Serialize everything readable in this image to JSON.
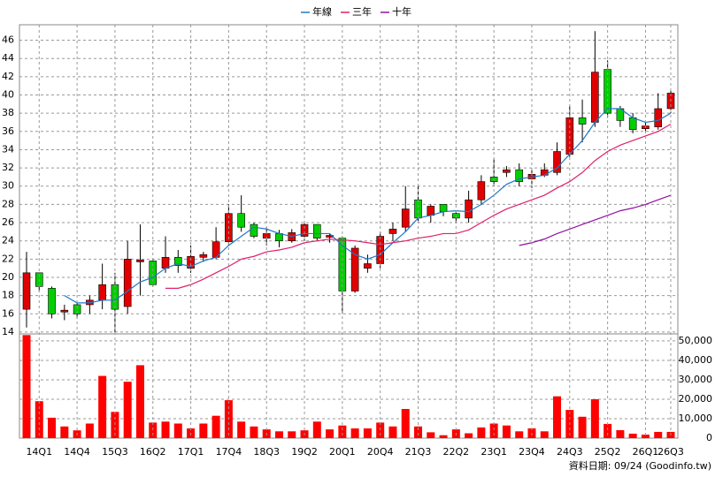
{
  "chart_data": [
    {
      "type": "candlestick",
      "open": [
        16.5,
        20.5,
        18.8,
        16.2,
        17,
        17,
        17.5,
        19.2,
        16.8,
        21.7,
        21.8,
        21,
        22.2,
        21,
        22.2,
        22.2,
        23.9,
        27,
        25.8,
        24.3,
        24.8,
        24,
        24.5,
        25.8,
        24.4,
        24.3,
        18.5,
        21,
        21.5,
        24.8,
        25.5,
        28.5,
        26.8,
        28,
        27,
        26.5,
        28.5,
        31,
        31.5,
        31.8,
        30.8,
        31.2,
        31.5,
        33.5,
        37.5,
        37,
        42.8,
        38.5,
        37.5,
        36.3,
        36.5,
        38.5
      ],
      "high": [
        22.8,
        20.5,
        19,
        17,
        17.2,
        18,
        21.5,
        20.5,
        24,
        25.8,
        22,
        24.5,
        23,
        23.5,
        22.8,
        25.5,
        28,
        29,
        26,
        25.5,
        25.2,
        25.3,
        26.2,
        25.8,
        24.8,
        24.5,
        23.5,
        22.5,
        25,
        26,
        30,
        30,
        28,
        28,
        27.2,
        29.5,
        31.2,
        33,
        32.2,
        32.5,
        32,
        32.5,
        34.8,
        38.8,
        39.5,
        47,
        43.8,
        38.8,
        38,
        37,
        40.2,
        40.5
      ],
      "low": [
        14.5,
        18.5,
        15.5,
        15.3,
        15.5,
        16,
        16.5,
        14,
        16,
        18,
        19,
        20.5,
        20.5,
        20.5,
        21.7,
        22,
        23.5,
        25,
        24.3,
        23.5,
        23.3,
        23.8,
        24,
        24,
        23.8,
        16,
        18.3,
        20.5,
        21,
        24,
        25,
        26,
        26,
        26.7,
        26,
        26,
        28,
        30,
        31,
        30,
        29.8,
        31,
        31.2,
        33.2,
        34.8,
        36.5,
        37.5,
        36.5,
        35.8,
        36,
        36.2,
        38
      ],
      "close": [
        20.5,
        19,
        16,
        16.4,
        16,
        17.5,
        19.2,
        16.5,
        22,
        21.9,
        19.2,
        22.2,
        21.3,
        22.3,
        22.5,
        23.9,
        27,
        25.5,
        24.5,
        24.8,
        24,
        24.9,
        25.8,
        24.3,
        24.6,
        18.5,
        23.2,
        21.5,
        24.5,
        25.3,
        27.5,
        26.5,
        27.8,
        27.2,
        26.5,
        28.5,
        30.5,
        30.5,
        31.8,
        30.5,
        31.3,
        31.8,
        33.8,
        37.5,
        36.8,
        42.5,
        38,
        37.2,
        36.2,
        36.6,
        38.5,
        40.2
      ],
      "up_color": "#e00000",
      "down_color": "#00d000",
      "series": [
        {
          "name": "年線",
          "color": "#1f78c8",
          "values": [
            null,
            null,
            null,
            18,
            17.2,
            17.2,
            17.5,
            17.5,
            18.5,
            19.5,
            20,
            21,
            21.5,
            21.2,
            21.8,
            22.2,
            23.5,
            24.5,
            25.5,
            25.3,
            24.8,
            24.5,
            24.8,
            24.8,
            24.8,
            23.5,
            22.5,
            22,
            22.5,
            23.8,
            25,
            26.5,
            26.8,
            27.2,
            27.3,
            27.2,
            28,
            29,
            30.2,
            30.8,
            31,
            31.2,
            32,
            33.5,
            35,
            37,
            38.5,
            38.5,
            37.5,
            37,
            37.2,
            38
          ]
        },
        {
          "name": "三年",
          "color": "#e0206a",
          "values": [
            null,
            null,
            null,
            null,
            null,
            null,
            null,
            null,
            null,
            null,
            null,
            18.8,
            18.8,
            19.2,
            19.8,
            20.5,
            21.2,
            22,
            22.3,
            22.8,
            23,
            23.3,
            23.8,
            24,
            24.2,
            24.1,
            24,
            23.8,
            23.6,
            23.8,
            24,
            24.3,
            24.5,
            24.8,
            24.8,
            25.2,
            26,
            26.8,
            27.5,
            28,
            28.5,
            29,
            29.8,
            30.5,
            31.5,
            32.8,
            33.8,
            34.5,
            35,
            35.5,
            36,
            36.8
          ]
        },
        {
          "name": "十年",
          "color": "#9010a0",
          "values": [
            null,
            null,
            null,
            null,
            null,
            null,
            null,
            null,
            null,
            null,
            null,
            null,
            null,
            null,
            null,
            null,
            null,
            null,
            null,
            null,
            null,
            null,
            null,
            null,
            null,
            null,
            null,
            null,
            null,
            null,
            null,
            null,
            null,
            null,
            null,
            null,
            null,
            null,
            null,
            23.5,
            23.8,
            24.2,
            24.8,
            25.3,
            25.8,
            26.3,
            26.8,
            27.3,
            27.6,
            28,
            28.5,
            29
          ]
        }
      ],
      "ylim": [
        13.8,
        47.7
      ],
      "yticks": [
        14,
        16,
        18,
        20,
        22,
        24,
        26,
        28,
        30,
        32,
        34,
        36,
        38,
        40,
        42,
        44,
        46
      ],
      "grid": true
    },
    {
      "type": "bar",
      "color": "#ff0000",
      "categories": [
        null,
        "14Q1",
        null,
        null,
        "14Q4",
        null,
        null,
        "15Q3",
        null,
        null,
        "16Q2",
        null,
        null,
        "17Q1",
        null,
        null,
        "17Q4",
        null,
        null,
        "18Q3",
        null,
        null,
        "19Q2",
        null,
        null,
        "20Q1",
        null,
        null,
        "20Q4",
        null,
        null,
        "21Q3",
        null,
        null,
        "22Q2",
        null,
        null,
        "23Q1",
        null,
        null,
        "23Q4",
        null,
        null,
        "24Q3",
        null,
        null,
        "25Q2",
        null,
        null,
        "26Q1",
        null,
        "26Q3"
      ],
      "values": [
        53000,
        19000,
        10500,
        6000,
        4000,
        7500,
        32000,
        13500,
        29000,
        37500,
        8000,
        8500,
        7500,
        5000,
        7500,
        11500,
        19500,
        8500,
        6000,
        4500,
        3500,
        3500,
        4000,
        8500,
        4500,
        6500,
        5000,
        5000,
        8000,
        6000,
        15000,
        6000,
        3000,
        1500,
        4500,
        2500,
        5500,
        7500,
        6500,
        3500,
        5000,
        3500,
        21500,
        14500,
        11000,
        20000,
        7300,
        4100,
        2300,
        1800,
        3200,
        3200
      ],
      "ylim": [
        0,
        53600
      ],
      "yticks": [
        0,
        {
          "value": 10000,
          "label": "10,000"
        },
        {
          "value": 20000,
          "label": "20,000"
        },
        {
          "value": 30000,
          "label": "30,000"
        },
        {
          "value": 40000,
          "label": "40,000"
        },
        {
          "value": 50000,
          "label": "50,000"
        }
      ],
      "grid": true
    }
  ],
  "footer": "資料日期: 09/24 (Goodinfo.tw)"
}
